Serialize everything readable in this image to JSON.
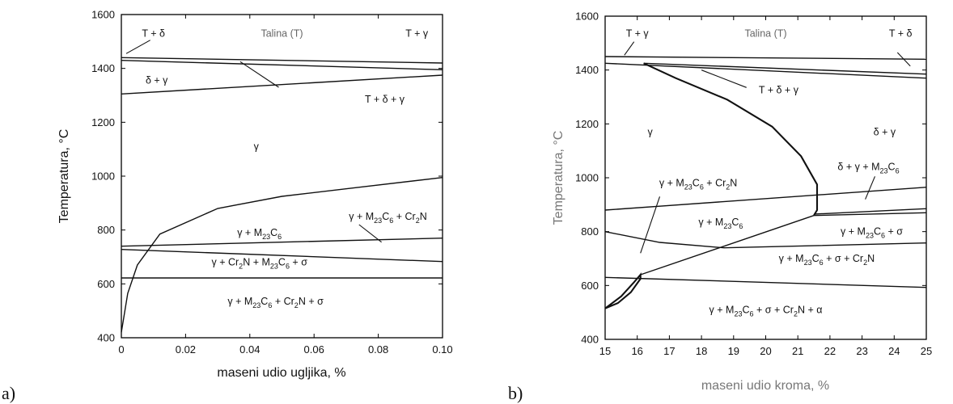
{
  "chart_data": [
    {
      "type": "phase-diagram",
      "panel": "a)",
      "xlabel": "maseni udio ugljika, %",
      "ylabel": "Temperatura, °C",
      "xlim": [
        0,
        0.1
      ],
      "ylim": [
        400,
        1600
      ],
      "xticks": [
        "0",
        "0.02",
        "0.04",
        "0.06",
        "0.08",
        "0.10"
      ],
      "yticks": [
        "400",
        "600",
        "800",
        "1000",
        "1200",
        "1400",
        "1600"
      ],
      "regions": [
        {
          "label": "T + δ",
          "x": 0.01,
          "y": 1530
        },
        {
          "label": "Talina (T)",
          "x": 0.05,
          "y": 1530
        },
        {
          "label": "T + γ",
          "x": 0.092,
          "y": 1530
        },
        {
          "label": "δ + γ",
          "x": 0.011,
          "y": 1355
        },
        {
          "label": "T + δ + γ",
          "x": 0.082,
          "y": 1285
        },
        {
          "label": "γ",
          "x": 0.042,
          "y": 1110
        },
        {
          "label": "γ + M23C6",
          "x": 0.043,
          "y": 790
        },
        {
          "label": "γ + M23C6 + Cr2N",
          "x": 0.083,
          "y": 850
        },
        {
          "label": "γ + Cr2N + M23C6 + σ",
          "x": 0.043,
          "y": 680
        },
        {
          "label": "γ + M23C6 + Cr2N + σ",
          "x": 0.048,
          "y": 535
        }
      ],
      "boundaries": [
        {
          "points": [
            [
              0,
              1440
            ],
            [
              0.1,
              1420
            ]
          ]
        },
        {
          "points": [
            [
              0,
              1430
            ],
            [
              0.1,
              1395
            ]
          ]
        },
        {
          "points": [
            [
              0,
              1305
            ],
            [
              0.1,
              1375
            ]
          ]
        },
        {
          "points": [
            [
              0,
              740
            ],
            [
              0.1,
              770
            ]
          ]
        },
        {
          "points": [
            [
              0,
              728
            ],
            [
              0.1,
              683
            ]
          ]
        },
        {
          "points": [
            [
              0,
              622
            ],
            [
              0.1,
              622
            ]
          ]
        },
        {
          "points": [
            [
              0,
              420
            ],
            [
              0.002,
              565
            ],
            [
              0.005,
              670
            ],
            [
              0.012,
              785
            ],
            [
              0.03,
              880
            ],
            [
              0.05,
              925
            ],
            [
              0.075,
              960
            ],
            [
              0.1,
              995
            ]
          ]
        }
      ],
      "leaders": [
        {
          "points": [
            [
              0.0015,
              1455
            ],
            [
              0.009,
              1505
            ]
          ]
        },
        {
          "points": [
            [
              0.037,
              1425
            ],
            [
              0.049,
              1330
            ]
          ]
        },
        {
          "points": [
            [
              0.074,
              820
            ],
            [
              0.081,
              755
            ]
          ]
        }
      ]
    },
    {
      "type": "phase-diagram",
      "panel": "b)",
      "xlabel": "maseni udio kroma, %",
      "ylabel": "Temperatura, °C",
      "xlim": [
        15,
        25
      ],
      "ylim": [
        400,
        1600
      ],
      "xticks": [
        "15",
        "16",
        "17",
        "18",
        "19",
        "20",
        "21",
        "22",
        "23",
        "24",
        "25"
      ],
      "yticks": [
        "400",
        "600",
        "800",
        "1000",
        "1200",
        "1400",
        "1600"
      ],
      "regions": [
        {
          "label": "T + γ",
          "x": 16.0,
          "y": 1535
        },
        {
          "label": "Talina (T)",
          "x": 20.0,
          "y": 1535
        },
        {
          "label": "T + δ",
          "x": 24.2,
          "y": 1535
        },
        {
          "label": "T + δ + γ",
          "x": 20.4,
          "y": 1325
        },
        {
          "label": "γ",
          "x": 16.4,
          "y": 1170
        },
        {
          "label": "δ + γ",
          "x": 23.7,
          "y": 1170
        },
        {
          "label": "δ + γ + M23C6",
          "x": 23.2,
          "y": 1040
        },
        {
          "label": "γ + M23C6 + Cr2N",
          "x": 17.9,
          "y": 980
        },
        {
          "label": "γ + M23C6",
          "x": 18.6,
          "y": 835
        },
        {
          "label": "γ + M23C6 + σ",
          "x": 23.3,
          "y": 800
        },
        {
          "label": "γ + M23C6 + σ + Cr2N",
          "x": 21.9,
          "y": 700
        },
        {
          "label": "γ + M23C6 + σ + Cr2N + α",
          "x": 20.0,
          "y": 510
        }
      ],
      "boundaries": [
        {
          "points": [
            [
              15,
              1450
            ],
            [
              25,
              1440
            ]
          ]
        },
        {
          "points": [
            [
              15,
              1425
            ],
            [
              25,
              1370
            ]
          ]
        },
        {
          "points": [
            [
              16.2,
              1425
            ],
            [
              25,
              1385
            ]
          ]
        },
        {
          "points": [
            [
              15,
              880
            ],
            [
              25,
              965
            ]
          ]
        },
        {
          "points": [
            [
              21.5,
              865
            ],
            [
              25,
              885
            ]
          ]
        },
        {
          "points": [
            [
              21.5,
              860
            ],
            [
              25,
              870
            ]
          ]
        },
        {
          "points": [
            [
              15,
              800
            ],
            [
              16.7,
              760
            ],
            [
              18.7,
              740
            ],
            [
              25,
              758
            ]
          ]
        },
        {
          "points": [
            [
              15,
              630
            ],
            [
              25,
              593
            ]
          ]
        },
        {
          "points": [
            [
              16.1,
              640
            ],
            [
              21.5,
              860
            ]
          ]
        }
      ],
      "thick_boundaries": [
        {
          "points": [
            [
              16.2,
              1425
            ],
            [
              17.2,
              1370
            ],
            [
              18.8,
              1290
            ],
            [
              20.2,
              1190
            ],
            [
              21.1,
              1080
            ],
            [
              21.6,
              975
            ],
            [
              21.6,
              880
            ],
            [
              21.5,
              860
            ]
          ]
        },
        {
          "points": [
            [
              15,
              515
            ],
            [
              15.4,
              535
            ],
            [
              15.8,
              575
            ],
            [
              16.1,
              625
            ],
            [
              16.1,
              640
            ],
            [
              15.9,
              612
            ],
            [
              15.5,
              560
            ],
            [
              15,
              515
            ]
          ]
        }
      ],
      "leaders": [
        {
          "points": [
            [
              15.6,
              1455
            ],
            [
              15.9,
              1505
            ]
          ]
        },
        {
          "points": [
            [
              18.0,
              1400
            ],
            [
              19.4,
              1335
            ]
          ]
        },
        {
          "points": [
            [
              24.1,
              1465
            ],
            [
              24.5,
              1415
            ]
          ]
        },
        {
          "points": [
            [
              16.7,
              930
            ],
            [
              16.1,
              720
            ]
          ]
        },
        {
          "points": [
            [
              23.4,
              1005
            ],
            [
              23.1,
              920
            ]
          ]
        }
      ]
    }
  ]
}
